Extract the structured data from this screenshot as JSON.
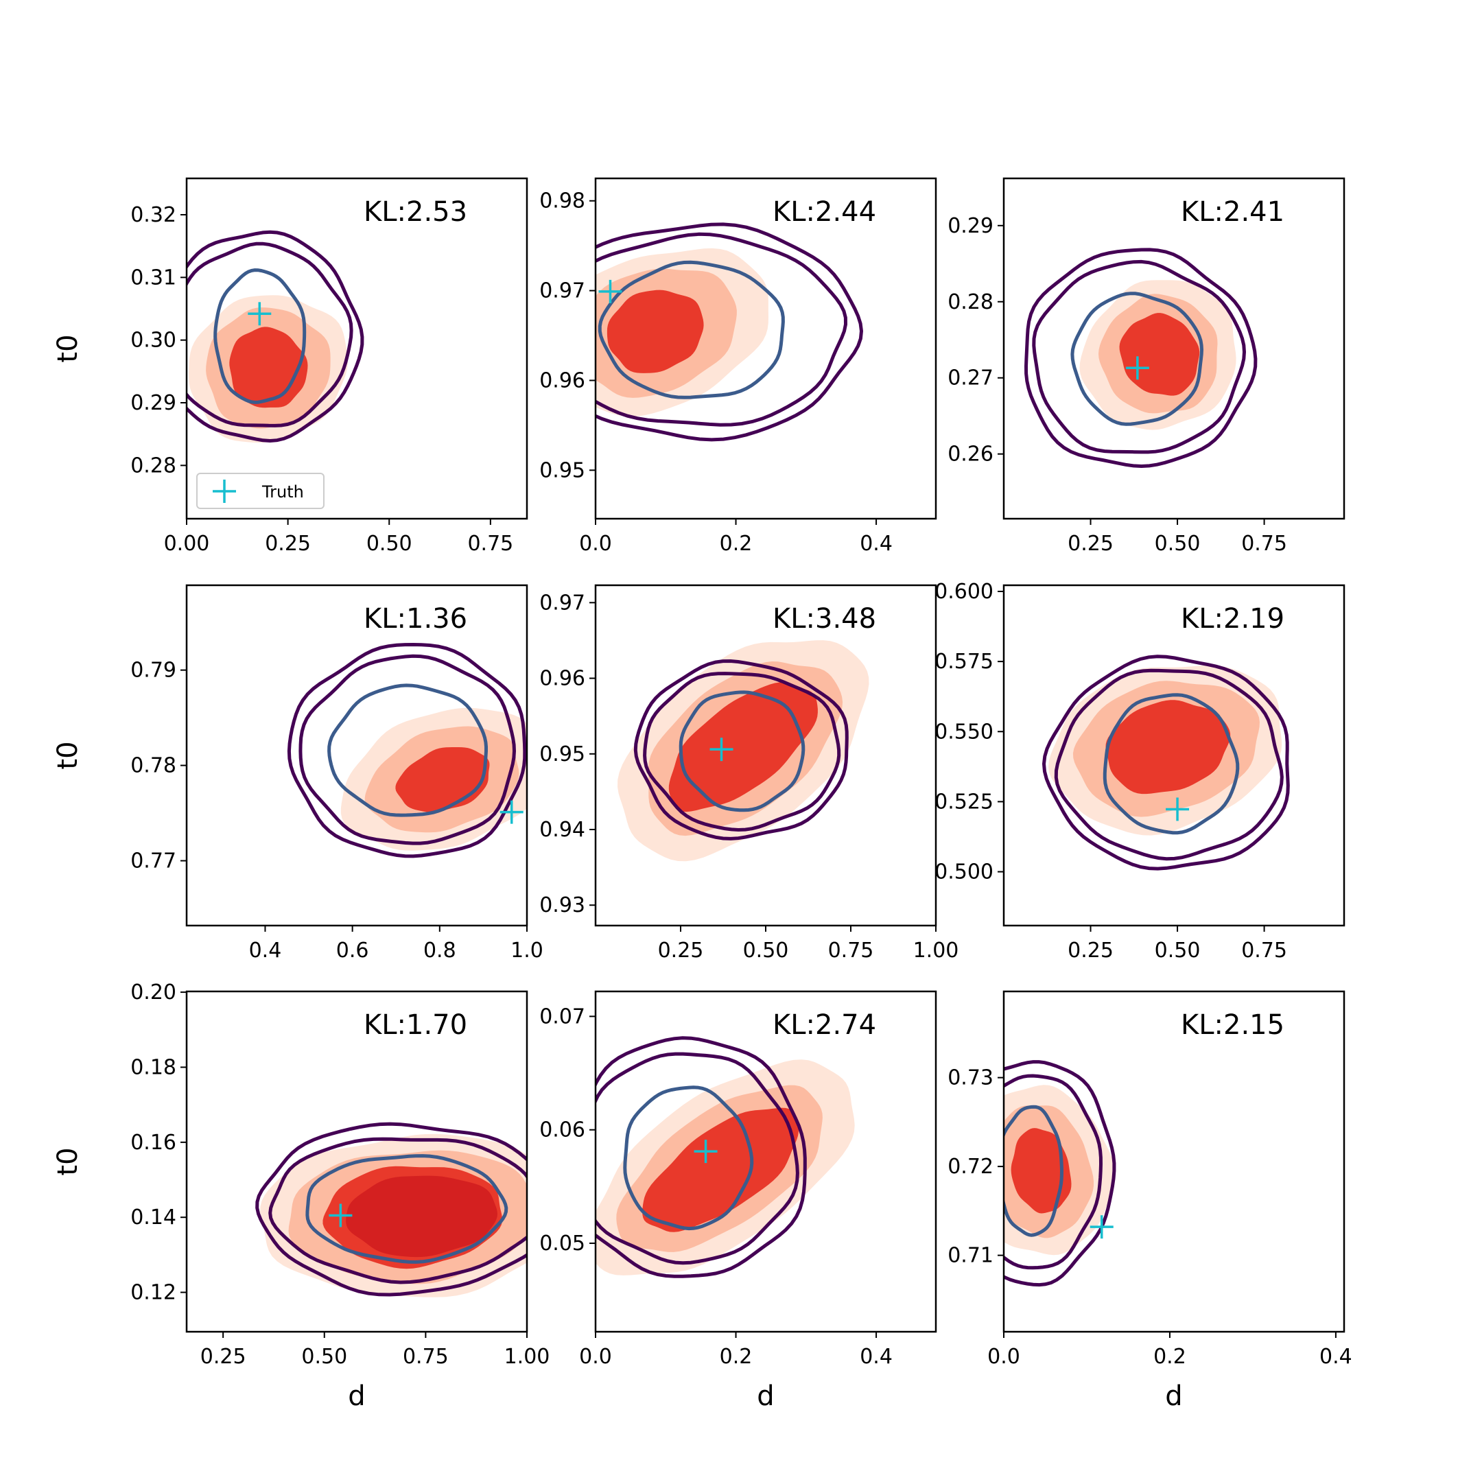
{
  "figure": {
    "legend_label": "Truth",
    "legend_location": "lower-left of first panel"
  },
  "colors": {
    "fill_outer": "#fee5d8",
    "fill_mid": "#fcbba1",
    "fill_inner": "#e8392b",
    "fill_core": "#d42020",
    "contour_outer": "#440154",
    "contour_inner": "#3b5b8c",
    "truth": "#17becf"
  },
  "chart_data": [
    {
      "type": "contour",
      "row": 0,
      "col": 0,
      "kl": "KL:2.53",
      "xlabel": "",
      "ylabel": "t0",
      "xlim": [
        0.0,
        0.84
      ],
      "ylim": [
        0.2715,
        0.3258
      ],
      "xticks": [
        0.0,
        0.25,
        0.5,
        0.75
      ],
      "xtick_labels": [
        "0.00",
        "0.25",
        "0.50",
        "0.75"
      ],
      "yticks": [
        0.28,
        0.29,
        0.3,
        0.31,
        0.32
      ],
      "ytick_labels": [
        "0.28",
        "0.29",
        "0.30",
        "0.31",
        "0.32"
      ],
      "truth": [
        0.18,
        0.3042
      ],
      "ref": {
        "center": [
          0.18,
          0.3005
        ],
        "rx": [
          0.11,
          0.22,
          0.245
        ],
        "ry": [
          0.0105,
          0.0145,
          0.0165
        ],
        "rot": 0
      },
      "est": {
        "center": [
          0.2,
          0.2955
        ],
        "rx": [
          0.095,
          0.155,
          0.2
        ],
        "ry": [
          0.0065,
          0.0095,
          0.0115
        ],
        "rot": -25,
        "core": false
      }
    },
    {
      "type": "contour",
      "row": 0,
      "col": 1,
      "kl": "KL:2.44",
      "xlabel": "",
      "ylabel": "",
      "xlim": [
        0.0,
        0.485
      ],
      "ylim": [
        0.9446,
        0.9825
      ],
      "xticks": [
        0.0,
        0.2,
        0.4
      ],
      "xtick_labels": [
        "0.0",
        "0.2",
        "0.4"
      ],
      "yticks": [
        0.95,
        0.96,
        0.97,
        0.98
      ],
      "ytick_labels": [
        "0.95",
        "0.96",
        "0.97",
        "0.98"
      ],
      "truth": [
        0.021,
        0.9699
      ],
      "ref": {
        "center": [
          0.14,
          0.9655
        ],
        "rx": [
          0.13,
          0.215,
          0.235
        ],
        "ry": [
          0.0075,
          0.0105,
          0.0118
        ],
        "rot": 0
      },
      "est": {
        "center": [
          0.085,
          0.9655
        ],
        "rx": [
          0.07,
          0.12,
          0.17
        ],
        "ry": [
          0.0045,
          0.0068,
          0.0085
        ],
        "rot": -20,
        "core": false
      }
    },
    {
      "type": "contour",
      "row": 0,
      "col": 2,
      "kl": "KL:2.41",
      "xlabel": "",
      "ylabel": "",
      "xlim": [
        0.0,
        0.98
      ],
      "ylim": [
        0.2515,
        0.2962
      ],
      "xticks": [
        0.25,
        0.5,
        0.75
      ],
      "xtick_labels": [
        "0.25",
        "0.50",
        "0.75"
      ],
      "yticks": [
        0.26,
        0.27,
        0.28,
        0.29
      ],
      "ytick_labels": [
        "0.26",
        "0.27",
        "0.28",
        "0.29"
      ],
      "truth": [
        0.385,
        0.2713
      ],
      "ref": {
        "center": [
          0.385,
          0.2725
        ],
        "rx": [
          0.185,
          0.3,
          0.33
        ],
        "ry": [
          0.0085,
          0.0125,
          0.0142
        ],
        "rot": 0
      },
      "est": {
        "center": [
          0.45,
          0.273
        ],
        "rx": [
          0.11,
          0.17,
          0.23
        ],
        "ry": [
          0.0055,
          0.0078,
          0.0095
        ],
        "rot": -35,
        "core": false
      }
    },
    {
      "type": "contour",
      "row": 1,
      "col": 0,
      "kl": "KL:1.36",
      "xlabel": "",
      "ylabel": "t0",
      "xlim": [
        0.22,
        1.0
      ],
      "ylim": [
        0.7632,
        0.7989
      ],
      "xticks": [
        0.4,
        0.6,
        0.8,
        1.0
      ],
      "xtick_labels": [
        "0.4",
        "0.6",
        "0.8",
        "1.0"
      ],
      "yticks": [
        0.77,
        0.78,
        0.79
      ],
      "ytick_labels": [
        "0.77",
        "0.78",
        "0.79"
      ],
      "truth": [
        0.965,
        0.7751
      ],
      "ref": {
        "center": [
          0.73,
          0.7815
        ],
        "rx": [
          0.18,
          0.245,
          0.27
        ],
        "ry": [
          0.0068,
          0.0098,
          0.0111
        ],
        "rot": 0
      },
      "est": {
        "center": [
          0.81,
          0.7785
        ],
        "rx": [
          0.11,
          0.18,
          0.24
        ],
        "ry": [
          0.0032,
          0.0052,
          0.007
        ],
        "rot": -18,
        "core": false
      }
    },
    {
      "type": "contour",
      "row": 1,
      "col": 1,
      "kl": "KL:3.48",
      "xlabel": "",
      "ylabel": "",
      "xlim": [
        0.0,
        1.0
      ],
      "ylim": [
        0.9273,
        0.9723
      ],
      "xticks": [
        0.25,
        0.5,
        0.75,
        1.0
      ],
      "xtick_labels": [
        "0.25",
        "0.50",
        "0.75",
        "1.00"
      ],
      "yticks": [
        0.93,
        0.94,
        0.95,
        0.96,
        0.97
      ],
      "ytick_labels": [
        "0.93",
        "0.94",
        "0.95",
        "0.96",
        "0.97"
      ],
      "truth": [
        0.37,
        0.9506
      ],
      "ref": {
        "center": [
          0.43,
          0.9505
        ],
        "rx": [
          0.18,
          0.285,
          0.31
        ],
        "ry": [
          0.0078,
          0.0103,
          0.0116
        ],
        "rot": 0
      },
      "est": {
        "center": [
          0.43,
          0.951
        ],
        "rx": [
          0.26,
          0.33,
          0.42
        ],
        "ry": [
          0.0055,
          0.0085,
          0.011
        ],
        "rot": -38,
        "core": false
      }
    },
    {
      "type": "contour",
      "row": 1,
      "col": 2,
      "kl": "KL:2.19",
      "xlabel": "",
      "ylabel": "",
      "xlim": [
        0.0,
        0.98
      ],
      "ylim": [
        0.4808,
        0.6022
      ],
      "xticks": [
        0.25,
        0.5,
        0.75
      ],
      "xtick_labels": [
        "0.25",
        "0.50",
        "0.75"
      ],
      "yticks": [
        0.5,
        0.525,
        0.55,
        0.575,
        0.6
      ],
      "ytick_labels": [
        "0.500",
        "0.525",
        "0.550",
        "0.575",
        "0.600"
      ],
      "truth": [
        0.5,
        0.5223
      ],
      "ref": {
        "center": [
          0.48,
          0.5385
        ],
        "rx": [
          0.19,
          0.32,
          0.35
        ],
        "ry": [
          0.0245,
          0.0335,
          0.0375
        ],
        "rot": 0
      },
      "est": {
        "center": [
          0.47,
          0.5445
        ],
        "rx": [
          0.18,
          0.27,
          0.34
        ],
        "ry": [
          0.016,
          0.023,
          0.029
        ],
        "rot": -15,
        "core": false
      }
    },
    {
      "type": "contour",
      "row": 2,
      "col": 0,
      "kl": "KL:1.70",
      "xlabel": "d",
      "ylabel": "t0",
      "xlim": [
        0.16,
        1.0
      ],
      "ylim": [
        0.1095,
        0.2002
      ],
      "xticks": [
        0.25,
        0.5,
        0.75,
        1.0
      ],
      "xtick_labels": [
        "0.25",
        "0.50",
        "0.75",
        "1.00"
      ],
      "yticks": [
        0.12,
        0.14,
        0.16,
        0.18,
        0.2
      ],
      "ytick_labels": [
        "0.12",
        "0.14",
        "0.16",
        "0.18",
        "0.20"
      ],
      "truth": [
        0.54,
        0.1405
      ],
      "ref": {
        "center": [
          0.7,
          0.1425
        ],
        "rx": [
          0.245,
          0.33,
          0.36
        ],
        "ry": [
          0.014,
          0.019,
          0.0225
        ],
        "rot": 0
      },
      "est": {
        "center": [
          0.72,
          0.1405
        ],
        "rx": [
          0.22,
          0.31,
          0.38
        ],
        "ry": [
          0.0135,
          0.0175,
          0.0215
        ],
        "rot": -3,
        "core": true
      }
    },
    {
      "type": "contour",
      "row": 2,
      "col": 1,
      "kl": "KL:2.74",
      "xlabel": "d",
      "ylabel": "",
      "xlim": [
        0.0,
        0.485
      ],
      "ylim": [
        0.0422,
        0.0722
      ],
      "xticks": [
        0.0,
        0.2,
        0.4
      ],
      "xtick_labels": [
        "0.0",
        "0.2",
        "0.4"
      ],
      "yticks": [
        0.05,
        0.06,
        0.07
      ],
      "ytick_labels": [
        "0.05",
        "0.06",
        "0.07"
      ],
      "truth": [
        0.157,
        0.0581
      ],
      "ref": {
        "center": [
          0.13,
          0.0575
        ],
        "rx": [
          0.09,
          0.155,
          0.17
        ],
        "ry": [
          0.0062,
          0.0092,
          0.0105
        ],
        "rot": 0
      },
      "est": {
        "center": [
          0.18,
          0.0565
        ],
        "rx": [
          0.13,
          0.17,
          0.22
        ],
        "ry": [
          0.0035,
          0.005,
          0.0065
        ],
        "rot": -35,
        "core": false
      }
    },
    {
      "type": "contour",
      "row": 2,
      "col": 2,
      "kl": "KL:2.15",
      "xlabel": "d",
      "ylabel": "",
      "xlim": [
        0.0,
        0.41
      ],
      "ylim": [
        0.7014,
        0.7397
      ],
      "xticks": [
        0.0,
        0.2,
        0.4
      ],
      "xtick_labels": [
        "0.0",
        "0.2",
        "0.4"
      ],
      "yticks": [
        0.71,
        0.72,
        0.73
      ],
      "ytick_labels": [
        "0.71",
        "0.72",
        "0.73"
      ],
      "truth": [
        0.118,
        0.7132
      ],
      "ref": {
        "center": [
          0.032,
          0.7195
        ],
        "rx": [
          0.038,
          0.085,
          0.1
        ],
        "ry": [
          0.0072,
          0.0108,
          0.0125
        ],
        "rot": 0
      },
      "est": {
        "center": [
          0.045,
          0.7195
        ],
        "rx": [
          0.035,
          0.06,
          0.085
        ],
        "ry": [
          0.0048,
          0.0075,
          0.0095
        ],
        "rot": -10,
        "core": false
      }
    }
  ]
}
